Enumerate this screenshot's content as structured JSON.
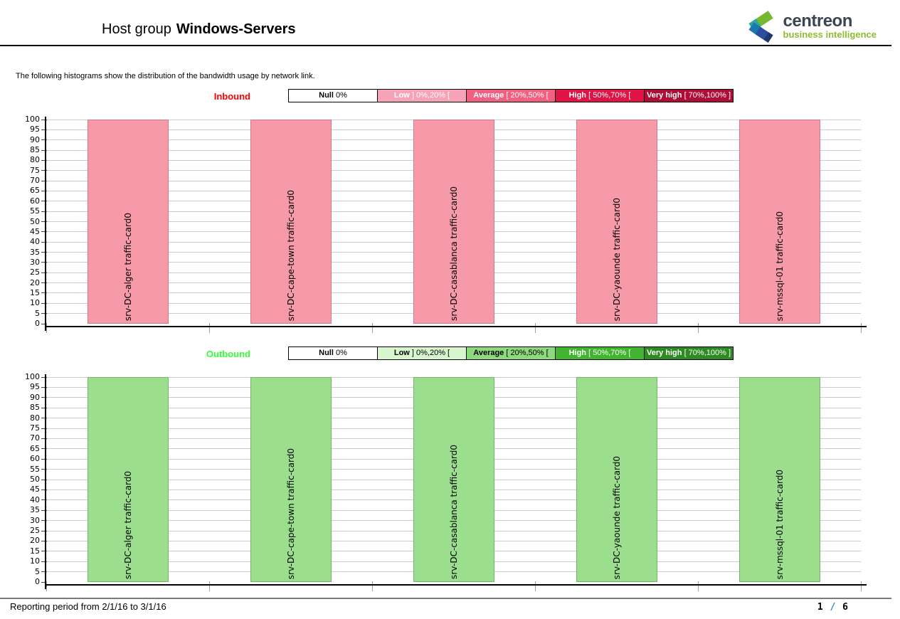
{
  "header": {
    "title_prefix": "Host group",
    "title_name": "Windows-Servers",
    "logo": {
      "icon": "centreon-c-mark-icon",
      "brand": "centreon",
      "tagline": "business intelligence",
      "brand_color": "#3C4555",
      "tagline_color": "#8CBE2F"
    }
  },
  "intro": "The following histograms show the distribution of the bandwidth usage by network link.",
  "y_axis": {
    "min": 0,
    "max": 100,
    "step": 5
  },
  "categories": [
    "srv-DC-alger traffic-card0",
    "srv-DC-cape-town traffic-card0",
    "srv-DC-casablanca traffic-card0",
    "srv-DC-yaounde traffic-card0",
    "srv-mssql-01 traffic-card0"
  ],
  "sections": [
    {
      "label": "Inbound",
      "label_color": "#FF0000",
      "bar_fill": "#F699A9",
      "bar_border": "#D4788A",
      "values": [
        100,
        100,
        100,
        100,
        100
      ],
      "legend": [
        {
          "name": "Null",
          "range": "0%",
          "bg": "#FFFFFF",
          "fg": "#000000"
        },
        {
          "name": "Low",
          "range": "] 0%,20% [",
          "bg": "#F8A3B5",
          "fg": "#FFFFFF"
        },
        {
          "name": "Average",
          "range": "[ 20%,50% [",
          "bg": "#F25F80",
          "fg": "#FFFFFF"
        },
        {
          "name": "High",
          "range": "[ 50%,70% [",
          "bg": "#E01345",
          "fg": "#FFFFFF"
        },
        {
          "name": "Very high",
          "range": "[ 70%,100% ]",
          "bg": "#AF0D35",
          "fg": "#FFFFFF"
        }
      ]
    },
    {
      "label": "Outbound",
      "label_color": "#33FF33",
      "bar_fill": "#9BDE8D",
      "bar_border": "#77B465",
      "values": [
        100,
        100,
        100,
        100,
        100
      ],
      "legend": [
        {
          "name": "Null",
          "range": "0%",
          "bg": "#FFFFFF",
          "fg": "#000000"
        },
        {
          "name": "Low",
          "range": "] 0%,20% [",
          "bg": "#D8F6CE",
          "fg": "#000000"
        },
        {
          "name": "Average",
          "range": "[ 20%,50% [",
          "bg": "#8FD97D",
          "fg": "#000000"
        },
        {
          "name": "High",
          "range": "[ 50%,70% [",
          "bg": "#41B52F",
          "fg": "#FFFFFF"
        },
        {
          "name": "Very high",
          "range": "[ 70%,100% ]",
          "bg": "#2E8A22",
          "fg": "#FFFFFF"
        }
      ]
    }
  ],
  "footer": {
    "period": "Reporting period from 2/1/16 to 3/1/16",
    "page_current": "1",
    "page_separator": "/",
    "page_total": "6",
    "separator_color": "#2D86C8"
  },
  "chart_data": [
    {
      "type": "bar",
      "title": "Inbound",
      "xlabel": "",
      "ylabel": "",
      "ylim": [
        0,
        100
      ],
      "ytick_step": 5,
      "grid": true,
      "legend_position": "top",
      "legend": [
        "Null 0%",
        "Low ] 0%,20% [",
        "Average [ 20%,50% [",
        "High [ 50%,70% [",
        "Very high [ 70%,100% ]"
      ],
      "bar_color": "#F699A9",
      "categories": [
        "srv-DC-alger traffic-card0",
        "srv-DC-cape-town traffic-card0",
        "srv-DC-casablanca traffic-card0",
        "srv-DC-yaounde traffic-card0",
        "srv-mssql-01 traffic-card0"
      ],
      "values": [
        100,
        100,
        100,
        100,
        100
      ]
    },
    {
      "type": "bar",
      "title": "Outbound",
      "xlabel": "",
      "ylabel": "",
      "ylim": [
        0,
        100
      ],
      "ytick_step": 5,
      "grid": true,
      "legend_position": "top",
      "legend": [
        "Null 0%",
        "Low ] 0%,20% [",
        "Average [ 20%,50% [",
        "High [ 50%,70% [",
        "Very high [ 70%,100% ]"
      ],
      "bar_color": "#9BDE8D",
      "categories": [
        "srv-DC-alger traffic-card0",
        "srv-DC-cape-town traffic-card0",
        "srv-DC-casablanca traffic-card0",
        "srv-DC-yaounde traffic-card0",
        "srv-mssql-01 traffic-card0"
      ],
      "values": [
        100,
        100,
        100,
        100,
        100
      ]
    }
  ]
}
